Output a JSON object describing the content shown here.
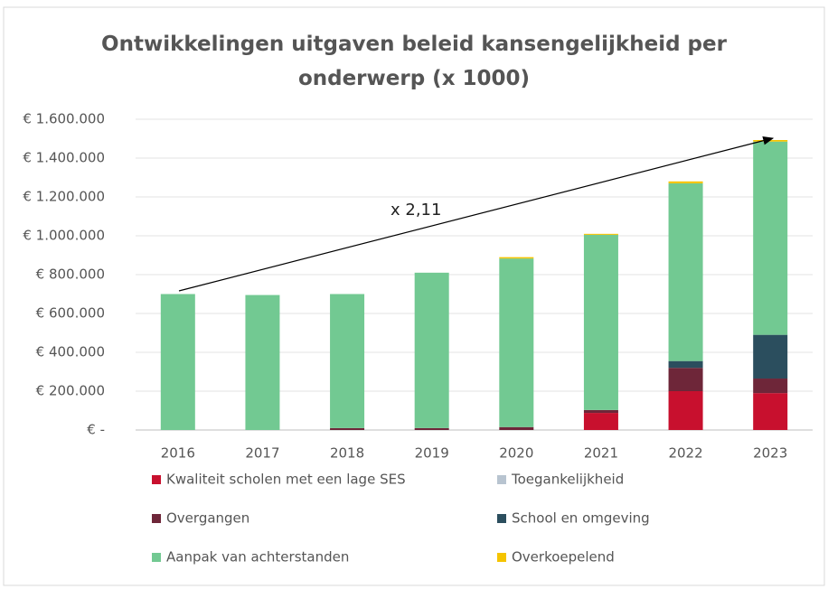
{
  "chart_data": {
    "type": "stacked_bar",
    "title": "Ontwikkelingen uitgaven beleid kansengelijkheid per onderwerp (x 1000)",
    "annotation": "x 2,11",
    "categories": [
      "2016",
      "2017",
      "2018",
      "2019",
      "2020",
      "2021",
      "2022",
      "2023"
    ],
    "series": [
      {
        "name": "Kwaliteit scholen met een lage SES",
        "color": "#c8102e",
        "values": [
          0,
          0,
          0,
          0,
          0,
          88000,
          200000,
          190000
        ]
      },
      {
        "name": "Toegankelijkheid",
        "color": "#b8c4d0",
        "values": [
          0,
          0,
          0,
          0,
          0,
          0,
          0,
          0
        ]
      },
      {
        "name": "Overgangen",
        "color": "#6e2639",
        "values": [
          0,
          0,
          10000,
          10000,
          15000,
          15000,
          120000,
          75000
        ]
      },
      {
        "name": "School en omgeving",
        "color": "#2b4e5e",
        "values": [
          0,
          0,
          0,
          0,
          0,
          0,
          35000,
          225000
        ]
      },
      {
        "name": "Aanpak van achterstanden",
        "color": "#72c992",
        "values": [
          700000,
          695000,
          690000,
          800000,
          868000,
          902000,
          915000,
          995000
        ]
      },
      {
        "name": "Overkoepelend",
        "color": "#f5c400",
        "values": [
          0,
          0,
          0,
          0,
          7000,
          5000,
          10000,
          8000
        ]
      }
    ],
    "ylim": [
      0,
      1600000
    ],
    "yticks": [
      {
        "value": 0,
        "label": "€ -"
      },
      {
        "value": 200000,
        "label": "€ 200.000"
      },
      {
        "value": 400000,
        "label": "€ 400.000"
      },
      {
        "value": 600000,
        "label": "€ 600.000"
      },
      {
        "value": 800000,
        "label": "€ 800.000"
      },
      {
        "value": 1000000,
        "label": "€ 1.000.000"
      },
      {
        "value": 1200000,
        "label": "€ 1.200.000"
      },
      {
        "value": 1400000,
        "label": "€ 1.400.000"
      },
      {
        "value": 1600000,
        "label": "€ 1.600.000"
      }
    ],
    "grid": true
  }
}
